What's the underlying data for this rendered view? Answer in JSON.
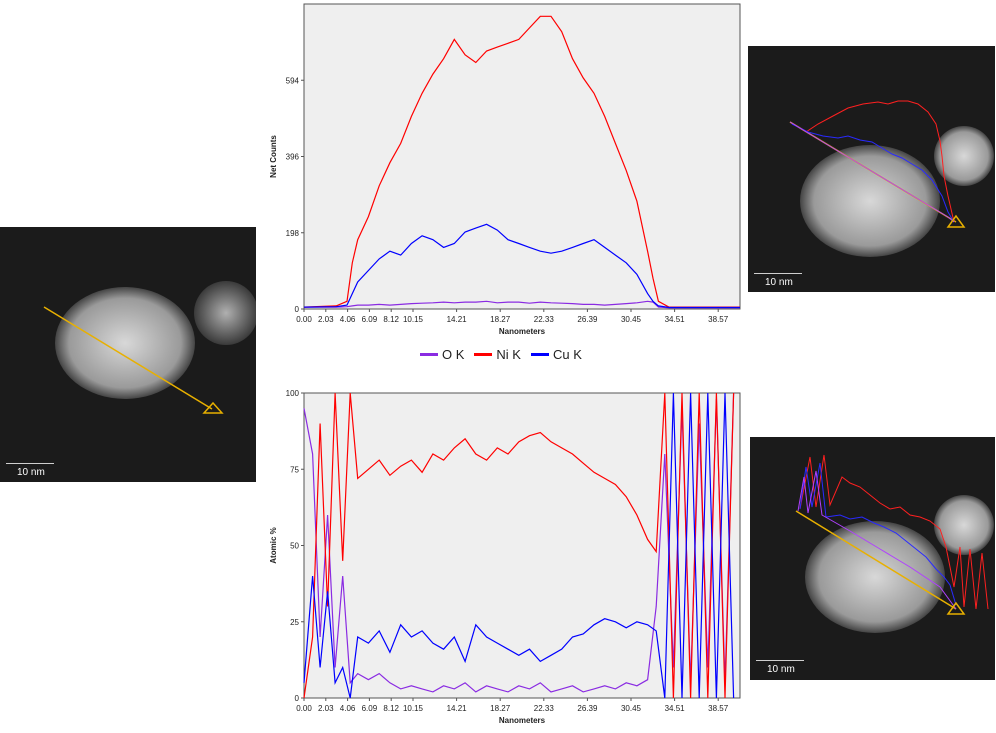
{
  "colors": {
    "O": "#8a2be2",
    "Ni": "#ff0000",
    "Cu": "#0000ff",
    "scan_line": "#e8b000",
    "plot_bg": "#efefef"
  },
  "legend": [
    {
      "label": "O K",
      "color": "#8a2be2"
    },
    {
      "label": "Ni K",
      "color": "#ff0000"
    },
    {
      "label": "Cu K",
      "color": "#0000ff"
    }
  ],
  "images": {
    "left": {
      "scale_label": "10 nm"
    },
    "top_right": {
      "scale_label": "10 nm"
    },
    "bottom_right": {
      "scale_label": "10 nm"
    }
  },
  "chart_data": [
    {
      "type": "line",
      "xlabel": "Nanometers",
      "ylabel": "Net Counts",
      "xlim": [
        0,
        40.6
      ],
      "ylim": [
        0,
        792
      ],
      "yticks": [
        0,
        198,
        396,
        594
      ],
      "xticks": [
        "0.00",
        "2.03",
        "4.06",
        "6.09",
        "8.12",
        "10.15",
        "14.21",
        "18.27",
        "22.33",
        "26.39",
        "30.45",
        "34.51",
        "38.57"
      ],
      "x": [
        0,
        3,
        4,
        4.5,
        5,
        6,
        7,
        8,
        9,
        10,
        11,
        12,
        13,
        14,
        15,
        16,
        17,
        18,
        19,
        20,
        21,
        22,
        23,
        24,
        25,
        26,
        27,
        28,
        29,
        30,
        31,
        32,
        32.5,
        33,
        34,
        36,
        40.6
      ],
      "series": [
        {
          "name": "O K",
          "values": [
            5,
            5,
            6,
            8,
            10,
            10,
            12,
            10,
            12,
            14,
            15,
            16,
            18,
            16,
            18,
            18,
            20,
            16,
            18,
            18,
            15,
            18,
            16,
            15,
            14,
            12,
            12,
            10,
            12,
            14,
            16,
            20,
            18,
            5,
            3,
            3,
            3
          ]
        },
        {
          "name": "Ni K",
          "values": [
            5,
            8,
            20,
            120,
            180,
            240,
            320,
            380,
            430,
            500,
            560,
            610,
            650,
            700,
            660,
            640,
            670,
            680,
            690,
            700,
            730,
            760,
            760,
            720,
            650,
            600,
            560,
            500,
            430,
            360,
            280,
            150,
            80,
            20,
            5,
            5,
            5
          ]
        },
        {
          "name": "Cu K",
          "values": [
            5,
            6,
            10,
            40,
            70,
            100,
            130,
            150,
            140,
            170,
            190,
            180,
            160,
            170,
            200,
            210,
            220,
            205,
            180,
            170,
            160,
            150,
            145,
            150,
            160,
            170,
            180,
            160,
            140,
            120,
            90,
            40,
            20,
            8,
            4,
            4,
            4
          ]
        }
      ]
    },
    {
      "type": "line",
      "xlabel": "Nanometers",
      "ylabel": "Atomic %",
      "xlim": [
        0,
        40.6
      ],
      "ylim": [
        0,
        100
      ],
      "yticks": [
        0,
        25,
        50,
        75,
        100
      ],
      "xticks": [
        "0.00",
        "2.03",
        "4.06",
        "6.09",
        "8.12",
        "10.15",
        "14.21",
        "18.27",
        "22.33",
        "26.39",
        "30.45",
        "34.51",
        "38.57"
      ],
      "x": [
        0,
        0.8,
        1.5,
        2.2,
        2.9,
        3.6,
        4.3,
        5,
        6,
        7,
        8,
        9,
        10,
        11,
        12,
        13,
        14,
        15,
        16,
        17,
        18,
        19,
        20,
        21,
        22,
        23,
        24,
        25,
        26,
        27,
        28,
        29,
        30,
        31,
        32,
        32.8,
        33.6,
        34.4,
        35.2,
        36,
        36.8,
        37.6,
        38.4,
        39.2,
        40
      ],
      "series": [
        {
          "name": "O K",
          "values": [
            95,
            80,
            20,
            60,
            10,
            40,
            5,
            8,
            6,
            8,
            5,
            3,
            4,
            3,
            2,
            4,
            3,
            5,
            2,
            4,
            3,
            2,
            4,
            3,
            5,
            2,
            3,
            4,
            2,
            3,
            4,
            3,
            5,
            4,
            6,
            30,
            80,
            10,
            95,
            5,
            90,
            10,
            98,
            5,
            100
          ]
        },
        {
          "name": "Ni K",
          "values": [
            0,
            20,
            90,
            30,
            100,
            45,
            100,
            72,
            75,
            78,
            73,
            76,
            78,
            74,
            80,
            78,
            82,
            85,
            80,
            78,
            82,
            80,
            84,
            86,
            87,
            84,
            82,
            80,
            77,
            74,
            72,
            70,
            66,
            60,
            52,
            48,
            100,
            0,
            100,
            0,
            100,
            0,
            100,
            0,
            100
          ]
        },
        {
          "name": "Cu K",
          "values": [
            5,
            40,
            10,
            35,
            5,
            10,
            0,
            20,
            18,
            22,
            15,
            24,
            20,
            22,
            18,
            16,
            20,
            12,
            24,
            20,
            18,
            16,
            14,
            16,
            12,
            14,
            16,
            20,
            21,
            24,
            26,
            25,
            23,
            25,
            24,
            22,
            0,
            100,
            0,
            100,
            0,
            100,
            0,
            100,
            0
          ]
        }
      ]
    }
  ]
}
